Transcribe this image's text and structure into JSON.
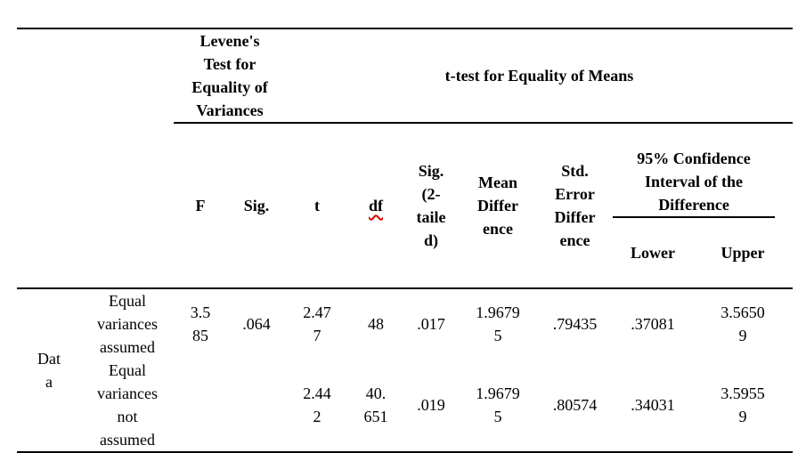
{
  "colors": {
    "background": "#ffffff",
    "text": "#000000",
    "rule": "#000000",
    "spellcheck_squiggle": "#e00000"
  },
  "table": {
    "spanners": {
      "levene": [
        "Levene's",
        "Test for",
        "Equality of",
        "Variances"
      ],
      "ttest": "t-test for Equality of Means"
    },
    "headers": {
      "f": "F",
      "sig": "Sig.",
      "t": "t",
      "df": "df",
      "sig_2_tailed": [
        "Sig.",
        "(2-",
        "taile",
        "d)"
      ],
      "mean_difference": [
        "Mean",
        "Differ",
        "ence"
      ],
      "std_error_difference": [
        "Std.",
        "Error",
        "Differ",
        "ence"
      ],
      "confidence_interval": [
        "95% Confidence",
        "Interval of the",
        "Difference"
      ],
      "lower": "Lower",
      "upper": "Upper"
    },
    "row_group": [
      "Dat",
      "a"
    ],
    "rows": [
      {
        "label": [
          "Equal",
          "variances",
          "assumed"
        ],
        "f": [
          "3.5",
          "85"
        ],
        "sig": ".064",
        "t": [
          "2.47",
          "7"
        ],
        "df": "48",
        "sig_2_tailed": ".017",
        "mean_difference": [
          "1.9679",
          "5"
        ],
        "std_error_difference": ".79435",
        "lower": ".37081",
        "upper": [
          "3.5650",
          "9"
        ]
      },
      {
        "label": [
          "Equal",
          "variances",
          "not",
          "assumed"
        ],
        "f": "",
        "sig": "",
        "t": [
          "2.44",
          "2"
        ],
        "df": [
          "40.",
          "651"
        ],
        "sig_2_tailed": ".019",
        "mean_difference": [
          "1.9679",
          "5"
        ],
        "std_error_difference": ".80574",
        "lower": ".34031",
        "upper": [
          "3.5955",
          "9"
        ]
      }
    ]
  }
}
